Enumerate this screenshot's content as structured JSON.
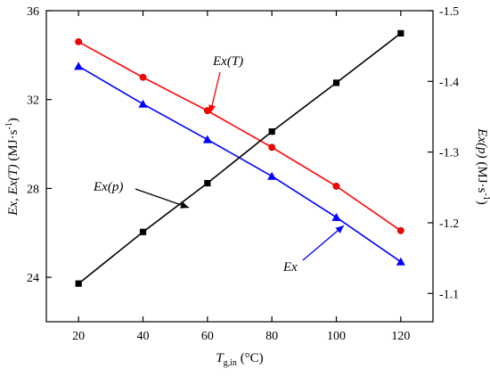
{
  "chart_data": {
    "type": "line",
    "x": [
      20,
      40,
      60,
      80,
      100,
      120
    ],
    "xlabel": {
      "symbol": "T",
      "subscript": "g,in",
      "unit": " (°C)"
    },
    "ylabel_left": {
      "pre": "Ex, Ex(T)",
      "unit": " (MJ·s",
      "sup": "-1",
      "close": ")"
    },
    "ylabel_right": {
      "pre": "Ex(p)",
      "unit": " (MJ·s",
      "sup": "-1",
      "close": ")"
    },
    "xlim": [
      10,
      130
    ],
    "xticks": [
      20,
      40,
      60,
      80,
      100,
      120
    ],
    "ylim_left": [
      22,
      36
    ],
    "yticks_left": [
      24,
      28,
      32,
      36
    ],
    "ylim_right": [
      -1.06,
      -1.5
    ],
    "yticks_right": [
      -1.1,
      -1.2,
      -1.3,
      -1.4,
      -1.5
    ],
    "series": [
      {
        "name": "Ex(T)",
        "axis": "left",
        "color": "#ff0000",
        "marker": "circle",
        "values": [
          34.6,
          33.0,
          31.5,
          29.85,
          28.1,
          26.1
        ]
      },
      {
        "name": "Ex",
        "axis": "left",
        "color": "#0000ff",
        "marker": "triangle",
        "values": [
          33.5,
          31.8,
          30.2,
          28.55,
          26.7,
          24.7
        ]
      },
      {
        "name": "Ex(p)",
        "axis": "right",
        "color": "#000000",
        "marker": "square",
        "values": [
          -1.114,
          -1.187,
          -1.256,
          -1.329,
          -1.398,
          -1.468
        ]
      }
    ],
    "annotations": [
      {
        "text": "Ex(T)",
        "series": "Ex(T)"
      },
      {
        "text": "Ex(p)",
        "series": "Ex(p)"
      },
      {
        "text": "Ex",
        "series": "Ex"
      }
    ],
    "grid": false,
    "legend": "none"
  }
}
